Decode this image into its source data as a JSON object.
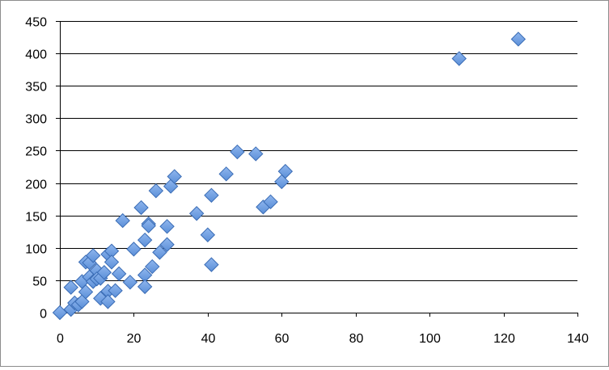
{
  "chart_data": {
    "type": "scatter",
    "title": "",
    "xlabel": "",
    "ylabel": "",
    "xlim": [
      0,
      140
    ],
    "ylim": [
      0,
      450
    ],
    "x_ticks": [
      0,
      20,
      40,
      60,
      80,
      100,
      120,
      140
    ],
    "y_ticks": [
      0,
      50,
      100,
      150,
      200,
      250,
      300,
      350,
      400,
      450
    ],
    "grid": "horizontal",
    "legend": "none",
    "marker": "diamond",
    "colors": {
      "marker_fill": "#5b8fd8",
      "marker_stroke": "#3a6cb5",
      "grid": "#000000",
      "axis": "#000000"
    },
    "series": [
      {
        "x": [
          0,
          3,
          3,
          4,
          5,
          6,
          6,
          7,
          7,
          8,
          8,
          9,
          9,
          10,
          10,
          11,
          11,
          12,
          13,
          13,
          13,
          14,
          14,
          15,
          16,
          17,
          19,
          20,
          22,
          23,
          23,
          23,
          24,
          24,
          25,
          26,
          27,
          29,
          29,
          30,
          31,
          37,
          40,
          41,
          41,
          45,
          48,
          53,
          55,
          57,
          60,
          61,
          108,
          124
        ],
        "y": [
          0,
          5,
          39,
          15,
          12,
          48,
          17,
          78,
          32,
          55,
          77,
          88,
          48,
          65,
          52,
          22,
          53,
          62,
          90,
          33,
          17,
          95,
          78,
          34,
          60,
          142,
          47,
          98,
          162,
          112,
          58,
          40,
          137,
          134,
          71,
          188,
          93,
          133,
          105,
          195,
          210,
          153,
          120,
          181,
          74,
          214,
          248,
          245,
          163,
          171,
          202,
          218,
          392,
          422
        ]
      }
    ]
  }
}
